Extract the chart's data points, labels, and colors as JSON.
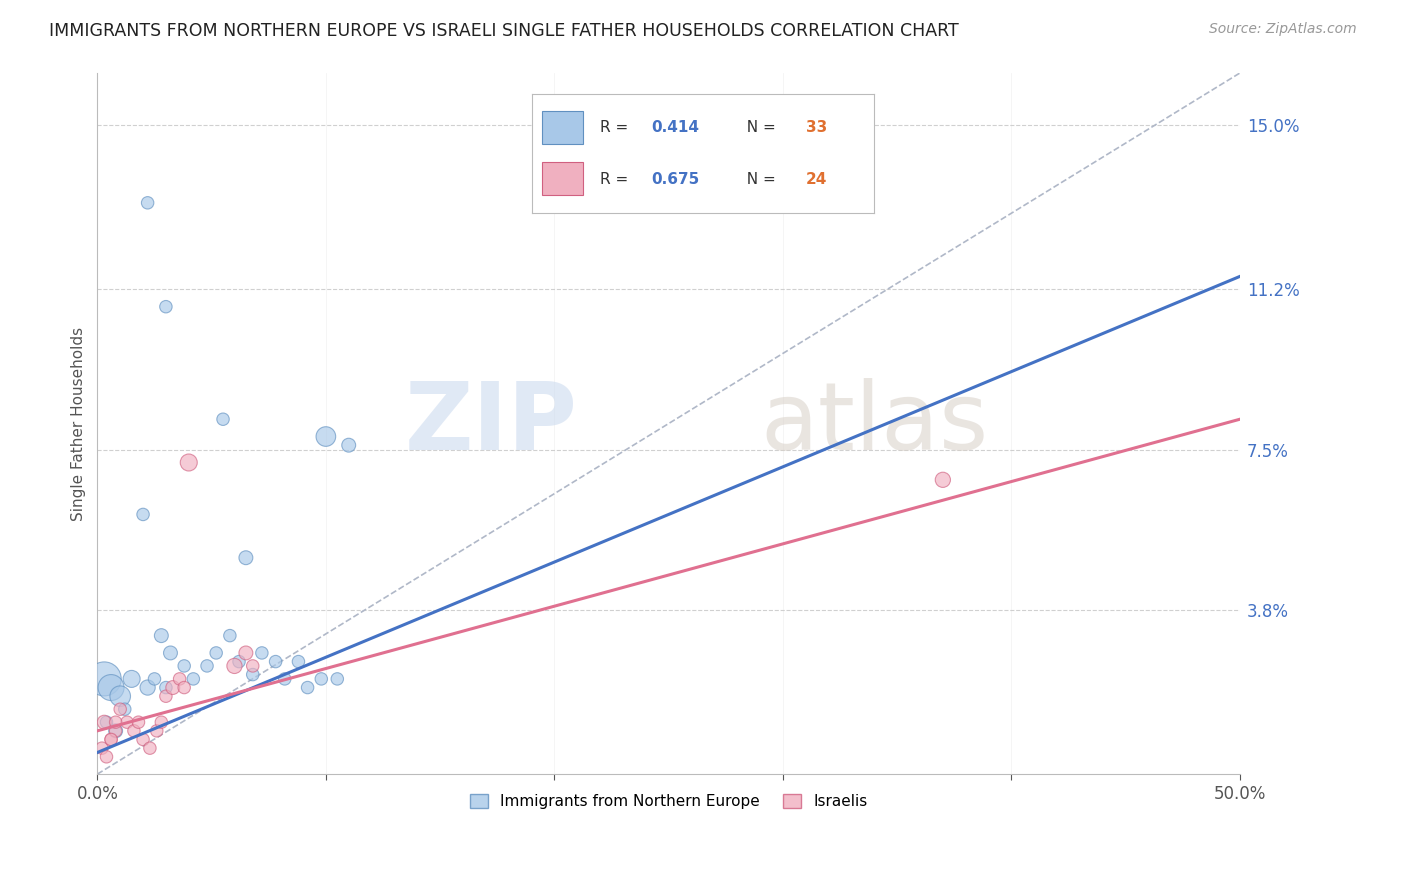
{
  "title": "IMMIGRANTS FROM NORTHERN EUROPE VS ISRAELI SINGLE FATHER HOUSEHOLDS CORRELATION CHART",
  "source": "Source: ZipAtlas.com",
  "ylabel": "Single Father Households",
  "xmin": 0.0,
  "xmax": 0.5,
  "ymin": 0.0,
  "ymax": 0.162,
  "right_yticks": [
    0.038,
    0.075,
    0.112,
    0.15
  ],
  "right_yticklabels": [
    "3.8%",
    "7.5%",
    "11.2%",
    "15.0%"
  ],
  "legend_label1": "Immigrants from Northern Europe",
  "legend_label2": "Israelis",
  "watermark_zip": "ZIP",
  "watermark_atlas": "atlas",
  "blue_scatter_x": [
    0.022,
    0.03,
    0.055,
    0.02,
    0.065,
    0.1,
    0.11,
    0.003,
    0.006,
    0.01,
    0.015,
    0.022,
    0.028,
    0.032,
    0.038,
    0.042,
    0.048,
    0.052,
    0.058,
    0.062,
    0.068,
    0.072,
    0.078,
    0.082,
    0.088,
    0.092,
    0.098,
    0.004,
    0.008,
    0.012,
    0.025,
    0.03,
    0.105
  ],
  "blue_scatter_y": [
    0.132,
    0.108,
    0.082,
    0.06,
    0.05,
    0.078,
    0.076,
    0.022,
    0.02,
    0.018,
    0.022,
    0.02,
    0.032,
    0.028,
    0.025,
    0.022,
    0.025,
    0.028,
    0.032,
    0.026,
    0.023,
    0.028,
    0.026,
    0.022,
    0.026,
    0.02,
    0.022,
    0.012,
    0.01,
    0.015,
    0.022,
    0.02,
    0.022
  ],
  "blue_scatter_sizes": [
    80,
    80,
    80,
    80,
    100,
    200,
    100,
    600,
    350,
    220,
    150,
    120,
    100,
    100,
    80,
    80,
    80,
    80,
    80,
    80,
    80,
    80,
    80,
    80,
    80,
    80,
    80,
    80,
    100,
    80,
    80,
    80,
    80
  ],
  "pink_scatter_x": [
    0.003,
    0.006,
    0.008,
    0.01,
    0.013,
    0.016,
    0.018,
    0.02,
    0.023,
    0.026,
    0.028,
    0.03,
    0.033,
    0.036,
    0.038,
    0.04,
    0.06,
    0.065,
    0.068,
    0.37,
    0.002,
    0.004,
    0.006,
    0.008
  ],
  "pink_scatter_y": [
    0.012,
    0.008,
    0.01,
    0.015,
    0.012,
    0.01,
    0.012,
    0.008,
    0.006,
    0.01,
    0.012,
    0.018,
    0.02,
    0.022,
    0.02,
    0.072,
    0.025,
    0.028,
    0.025,
    0.068,
    0.006,
    0.004,
    0.008,
    0.012
  ],
  "pink_scatter_sizes": [
    100,
    80,
    80,
    80,
    80,
    80,
    80,
    80,
    80,
    80,
    80,
    80,
    100,
    80,
    80,
    150,
    120,
    100,
    80,
    120,
    80,
    80,
    80,
    80
  ],
  "blue_line_x": [
    0.0,
    0.5
  ],
  "blue_line_y": [
    0.005,
    0.115
  ],
  "pink_line_x": [
    0.0,
    0.5
  ],
  "pink_line_y": [
    0.01,
    0.082
  ],
  "ref_line_x": [
    0.0,
    0.5
  ],
  "ref_line_y": [
    0.0,
    0.162
  ],
  "grid_color": "#d0d0d0",
  "blue_color": "#a8c8e8",
  "blue_edge_color": "#6090c0",
  "pink_color": "#f0b0c0",
  "pink_edge_color": "#d06080",
  "blue_line_color": "#4472c4",
  "pink_line_color": "#e07090",
  "ref_line_color": "#b0b8c8",
  "r_blue": "0.414",
  "n_blue": "33",
  "r_pink": "0.675",
  "n_pink": "24",
  "r_color": "#4472c4",
  "n_color": "#e07030"
}
